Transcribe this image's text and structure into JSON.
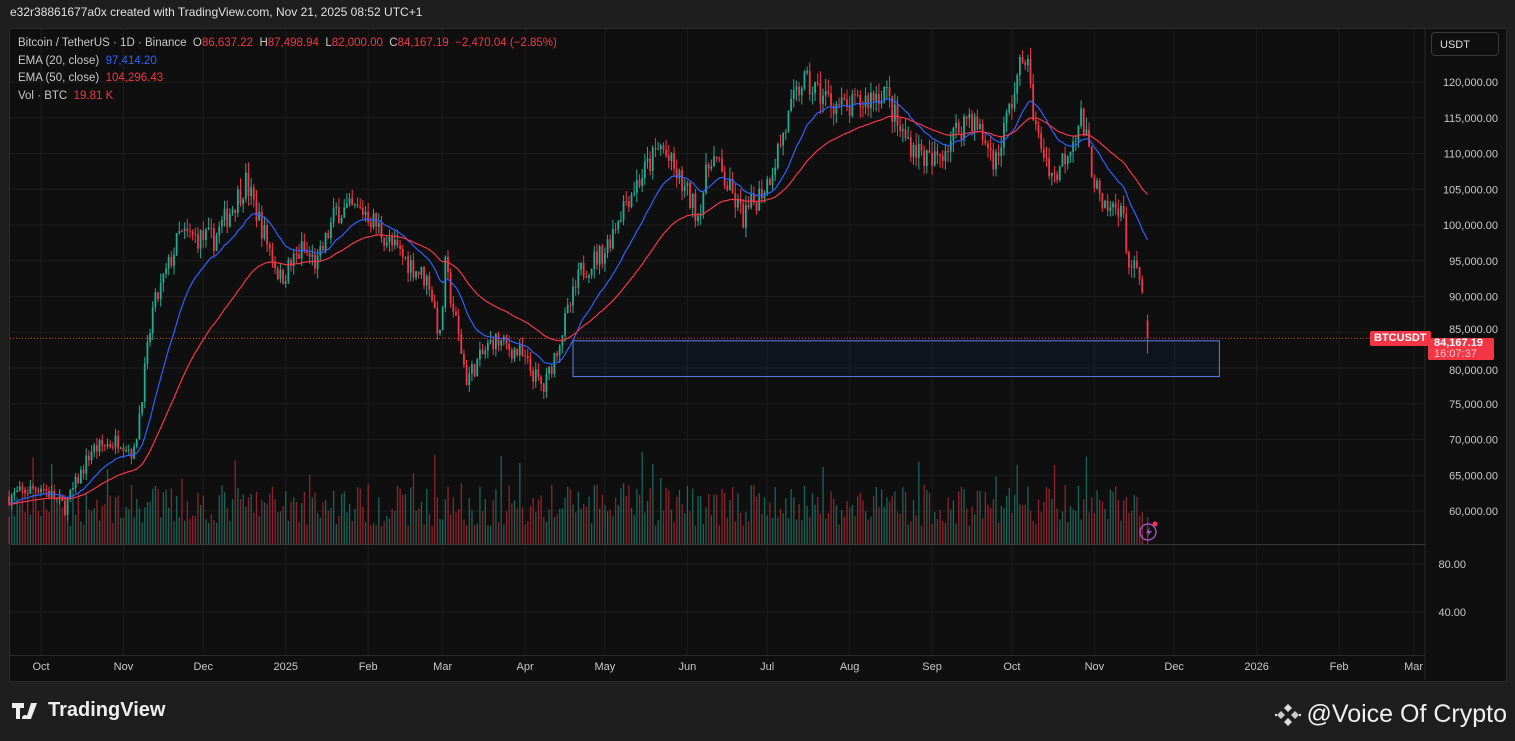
{
  "header": {
    "caption": "e32r38861677a0x created with TradingView.com, Nov 21, 2025 08:52 UTC+1"
  },
  "legend": {
    "symbol": "Bitcoin / TetherUS · 1D · Binance",
    "o_label": "O",
    "o": "86,637.22",
    "h_label": "H",
    "h": "87,498.94",
    "l_label": "L",
    "l": "82,000.00",
    "c_label": "C",
    "c": "84,167.19",
    "change": "−2,470.04 (−2.85%)",
    "ema20_label": "EMA (20, close)",
    "ema20": "97,414.20",
    "ema50_label": "EMA (50, close)",
    "ema50": "104,296.43",
    "vol_label": "Vol · BTC",
    "vol": "19.81 K"
  },
  "currency_button": "USDT",
  "price_tag": {
    "symbol": "BTCUSDT",
    "price": "84,167.19",
    "countdown": "16:07:37"
  },
  "footer": {
    "brand": "TradingView",
    "watermark": "@Voice Of Crypto"
  },
  "colors": {
    "up": "#22ab94",
    "down": "#f23645",
    "ema20": "#2962ff",
    "ema50": "#f23645"
  },
  "chart_data": {
    "type": "candlestick",
    "title": "Bitcoin / TetherUS · 1D · Binance",
    "y_ticks": [
      120000,
      115000,
      110000,
      105000,
      100000,
      95000,
      90000,
      85000,
      80000,
      75000,
      70000,
      65000,
      60000
    ],
    "y_tick_labels": [
      "120,000.00",
      "115,000.00",
      "110,000.00",
      "105,000.00",
      "100,000.00",
      "95,000.00",
      "90,000.00",
      "85,000.00",
      "80,000.00",
      "75,000.00",
      "70,000.00",
      "65,000.00",
      "60,000.00"
    ],
    "lower_pane_ticks": [
      "80.00",
      "40.00"
    ],
    "x_ticks": [
      {
        "date": "2024-10-01",
        "label": "Oct"
      },
      {
        "date": "2024-11-01",
        "label": "Nov"
      },
      {
        "date": "2024-12-01",
        "label": "Dec"
      },
      {
        "date": "2025-01-01",
        "label": "2025"
      },
      {
        "date": "2025-02-01",
        "label": "Feb"
      },
      {
        "date": "2025-03-01",
        "label": "Mar"
      },
      {
        "date": "2025-04-01",
        "label": "Apr"
      },
      {
        "date": "2025-05-01",
        "label": "May"
      },
      {
        "date": "2025-06-01",
        "label": "Jun"
      },
      {
        "date": "2025-07-01",
        "label": "Jul"
      },
      {
        "date": "2025-08-01",
        "label": "Aug"
      },
      {
        "date": "2025-09-01",
        "label": "Sep"
      },
      {
        "date": "2025-10-01",
        "label": "Oct"
      },
      {
        "date": "2025-11-01",
        "label": "Nov"
      },
      {
        "date": "2025-12-01",
        "label": "Dec"
      },
      {
        "date": "2026-01-01",
        "label": "2026"
      },
      {
        "date": "2026-02-01",
        "label": "Feb"
      },
      {
        "date": "2026-03-01",
        "label": "Mar"
      }
    ],
    "close_anchors": [
      [
        "2024-09-19",
        62000
      ],
      [
        "2024-10-01",
        63500
      ],
      [
        "2024-10-10",
        60500
      ],
      [
        "2024-10-20",
        68500
      ],
      [
        "2024-10-31",
        70000
      ],
      [
        "2024-11-05",
        68000
      ],
      [
        "2024-11-12",
        88000
      ],
      [
        "2024-11-22",
        98500
      ],
      [
        "2024-12-05",
        98000
      ],
      [
        "2024-12-17",
        106000
      ],
      [
        "2024-12-30",
        92500
      ],
      [
        "2025-01-07",
        96500
      ],
      [
        "2025-01-13",
        94500
      ],
      [
        "2025-01-20",
        102000
      ],
      [
        "2025-01-31",
        102000
      ],
      [
        "2025-02-10",
        97000
      ],
      [
        "2025-02-24",
        92000
      ],
      [
        "2025-02-28",
        84000
      ],
      [
        "2025-03-02",
        94000
      ],
      [
        "2025-03-10",
        78500
      ],
      [
        "2025-03-20",
        84000
      ],
      [
        "2025-03-30",
        82000
      ],
      [
        "2025-04-08",
        77000
      ],
      [
        "2025-04-22",
        93500
      ],
      [
        "2025-05-01",
        96500
      ],
      [
        "2025-05-08",
        103000
      ],
      [
        "2025-05-22",
        111000
      ],
      [
        "2025-06-05",
        101500
      ],
      [
        "2025-06-10",
        110000
      ],
      [
        "2025-06-22",
        101000
      ],
      [
        "2025-07-01",
        106000
      ],
      [
        "2025-07-10",
        116000
      ],
      [
        "2025-07-14",
        120000
      ],
      [
        "2025-07-31",
        116000
      ],
      [
        "2025-08-14",
        119000
      ],
      [
        "2025-08-20",
        113000
      ],
      [
        "2025-09-01",
        108500
      ],
      [
        "2025-09-15",
        115500
      ],
      [
        "2025-09-25",
        109000
      ],
      [
        "2025-10-06",
        124500
      ],
      [
        "2025-10-10",
        113000
      ],
      [
        "2025-10-17",
        106500
      ],
      [
        "2025-10-27",
        115000
      ],
      [
        "2025-11-04",
        101500
      ],
      [
        "2025-11-11",
        103000
      ],
      [
        "2025-11-14",
        94500
      ],
      [
        "2025-11-18",
        92500
      ],
      [
        "2025-11-20",
        86637.22
      ]
    ],
    "last_candle": {
      "date": "2025-11-21",
      "open": 86637.22,
      "high": 87498.94,
      "low": 82000.0,
      "close": 84167.19
    },
    "indicators": [
      {
        "name": "EMA 20",
        "period": 20,
        "last": 97414.2
      },
      {
        "name": "EMA 50",
        "period": 50,
        "last": 104296.43
      }
    ],
    "last_volume_k": 19.81,
    "zone_rectangle": {
      "from": "2025-04-19",
      "to": "2025-12-18",
      "price_top": 83800,
      "price_bottom": 78800
    },
    "current_price": 84167.19
  }
}
